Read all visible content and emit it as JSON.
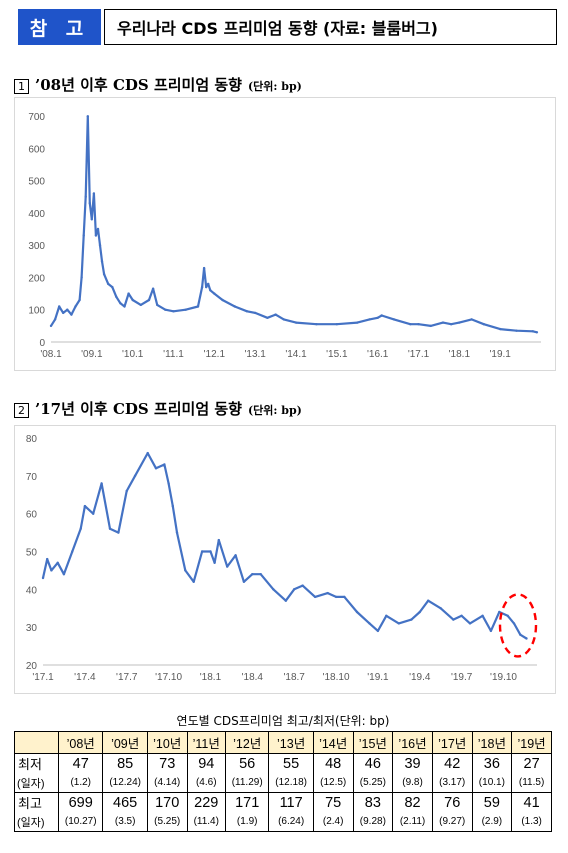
{
  "header": {
    "badge": "참 고",
    "title": "우리나라 CDS 프리미엄 동향 (자료: 블룸버그)"
  },
  "section1": {
    "num": "1",
    "title": "’08년 이후 CDS 프리미엄 동향",
    "unit": "(단위: bp)"
  },
  "section2": {
    "num": "2",
    "title": "’17년 이후 CDS 프리미엄 동향",
    "unit": "(단위: bp)"
  },
  "chart_data": [
    {
      "type": "line",
      "title": "",
      "xlabel": "",
      "ylabel": "",
      "ylim": [
        0,
        700
      ],
      "yticks": [
        0,
        100,
        200,
        300,
        400,
        500,
        600,
        700
      ],
      "xticks": [
        "'08.1",
        "'09.1",
        "'10.1",
        "'11.1",
        "'12.1",
        "'13.1",
        "'14.1",
        "'15.1",
        "'16.1",
        "'17.1",
        "'18.1",
        "'19.1"
      ],
      "grid": false,
      "color": "#4472c4",
      "series": [
        {
          "x": [
            2008.0,
            2008.1,
            2008.2,
            2008.3,
            2008.4,
            2008.5,
            2008.6,
            2008.7,
            2008.75,
            2008.8,
            2008.85,
            2008.9,
            2008.95,
            2009.0,
            2009.05,
            2009.1,
            2009.15,
            2009.2,
            2009.25,
            2009.3,
            2009.4,
            2009.5,
            2009.6,
            2009.7,
            2009.8,
            2009.9,
            2010.0,
            2010.2,
            2010.4,
            2010.5,
            2010.6,
            2010.8,
            2011.0,
            2011.3,
            2011.6,
            2011.7,
            2011.75,
            2011.8,
            2011.85,
            2011.9,
            2012.0,
            2012.2,
            2012.5,
            2012.8,
            2013.0,
            2013.3,
            2013.5,
            2013.7,
            2014.0,
            2014.5,
            2015.0,
            2015.5,
            2015.8,
            2016.0,
            2016.1,
            2016.4,
            2016.8,
            2017.0,
            2017.3,
            2017.6,
            2017.8,
            2018.0,
            2018.3,
            2018.6,
            2019.0,
            2019.4,
            2019.8,
            2019.9
          ],
          "y": [
            50,
            70,
            110,
            90,
            100,
            85,
            110,
            130,
            200,
            330,
            450,
            699,
            430,
            380,
            460,
            330,
            350,
            300,
            250,
            210,
            180,
            170,
            140,
            120,
            110,
            150,
            130,
            115,
            130,
            165,
            115,
            100,
            95,
            100,
            110,
            170,
            229,
            170,
            180,
            160,
            150,
            130,
            110,
            95,
            90,
            75,
            85,
            70,
            60,
            55,
            55,
            60,
            70,
            75,
            82,
            70,
            55,
            55,
            50,
            60,
            55,
            60,
            70,
            55,
            40,
            35,
            33,
            30
          ]
        }
      ]
    },
    {
      "type": "line",
      "title": "",
      "xlabel": "",
      "ylabel": "",
      "ylim": [
        20,
        80
      ],
      "yticks": [
        20,
        30,
        40,
        50,
        60,
        70,
        80
      ],
      "xticks": [
        "'17.1",
        "'17.4",
        "'17.7",
        "'17.10",
        "'18.1",
        "'18.4",
        "'18.7",
        "'18.10",
        "'19.1",
        "'19.4",
        "'19.7",
        "'19.10"
      ],
      "grid": false,
      "color": "#4472c4",
      "series": [
        {
          "x": [
            0.0,
            0.1,
            0.2,
            0.35,
            0.5,
            0.7,
            0.9,
            1.0,
            1.2,
            1.4,
            1.6,
            1.8,
            2.0,
            2.2,
            2.5,
            2.7,
            2.9,
            3.0,
            3.1,
            3.2,
            3.4,
            3.6,
            3.8,
            4.0,
            4.1,
            4.2,
            4.4,
            4.6,
            4.8,
            5.0,
            5.2,
            5.5,
            5.8,
            6.0,
            6.2,
            6.5,
            6.8,
            7.0,
            7.2,
            7.5,
            7.8,
            8.0,
            8.2,
            8.5,
            8.8,
            9.0,
            9.2,
            9.5,
            9.8,
            10.0,
            10.2,
            10.5,
            10.7,
            10.9,
            11.1,
            11.25,
            11.4,
            11.55
          ],
          "y": [
            43,
            48,
            45,
            47,
            44,
            50,
            56,
            62,
            60,
            68,
            56,
            55,
            66,
            70,
            76,
            72,
            73,
            68,
            62,
            55,
            45,
            42,
            50,
            50,
            47,
            53,
            46,
            49,
            42,
            44,
            44,
            40,
            37,
            40,
            41,
            38,
            39,
            38,
            38,
            34,
            31,
            29,
            33,
            31,
            32,
            34,
            37,
            35,
            32,
            33,
            31,
            33,
            29,
            34,
            33,
            31,
            28,
            27
          ]
        }
      ],
      "annotation": "dashed red circle around latest low (Oct 2019)"
    }
  ],
  "table": {
    "caption": "연도별 CDS프리미엄 최고/최저(단위: bp)",
    "years": [
      "’08년",
      "’09년",
      "’10년",
      "’11년",
      "’12년",
      "’13년",
      "’14년",
      "’15년",
      "’16년",
      "’17년",
      "’18년",
      "’19년"
    ],
    "min_label": "최저",
    "max_label": "최고",
    "date_label": "(일자)",
    "min_values": [
      "47",
      "85",
      "73",
      "94",
      "56",
      "55",
      "48",
      "46",
      "39",
      "42",
      "36",
      "27"
    ],
    "min_dates": [
      "(1.2)",
      "(12.24)",
      "(4.14)",
      "(4.6)",
      "(11.29)",
      "(12.18)",
      "(12.5)",
      "(5.25)",
      "(9.8)",
      "(3.17)",
      "(10.1)",
      "(11.5)"
    ],
    "max_values": [
      "699",
      "465",
      "170",
      "229",
      "171",
      "117",
      "75",
      "83",
      "82",
      "76",
      "59",
      "41"
    ],
    "max_dates": [
      "(10.27)",
      "(3.5)",
      "(5.25)",
      "(11.4)",
      "(1.9)",
      "(6.24)",
      "(2.4)",
      "(9.28)",
      "(2.11)",
      "(9.27)",
      "(2.9)",
      "(1.3)"
    ]
  }
}
